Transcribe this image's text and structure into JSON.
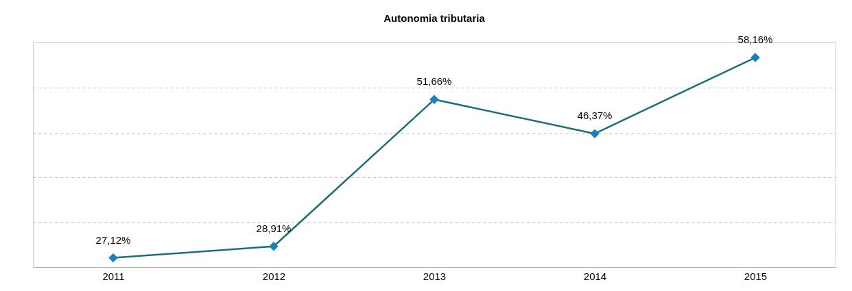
{
  "chart_data": {
    "type": "line",
    "title": "Autonomia tributaria",
    "categories": [
      "2011",
      "2012",
      "2013",
      "2014",
      "2015"
    ],
    "series": [
      {
        "color": "#1b6f73",
        "values": [
          27.12,
          28.91,
          51.66,
          46.37,
          58.16
        ],
        "value_labels": [
          "27,12%",
          "28,91%",
          "51,66%",
          "46,37%",
          "58,16%"
        ]
      }
    ],
    "ylim": [
      25.7,
      60.5
    ],
    "yticks": [
      {
        "value": 32.7,
        "label": null
      },
      {
        "value": 39.6,
        "label": null
      },
      {
        "value": 46.5,
        "label": null
      },
      {
        "value": 53.5,
        "label": null
      }
    ],
    "grid": "y",
    "tick_labels": "x",
    "marker": "diamond",
    "line_style": "solid",
    "legend": false
  }
}
